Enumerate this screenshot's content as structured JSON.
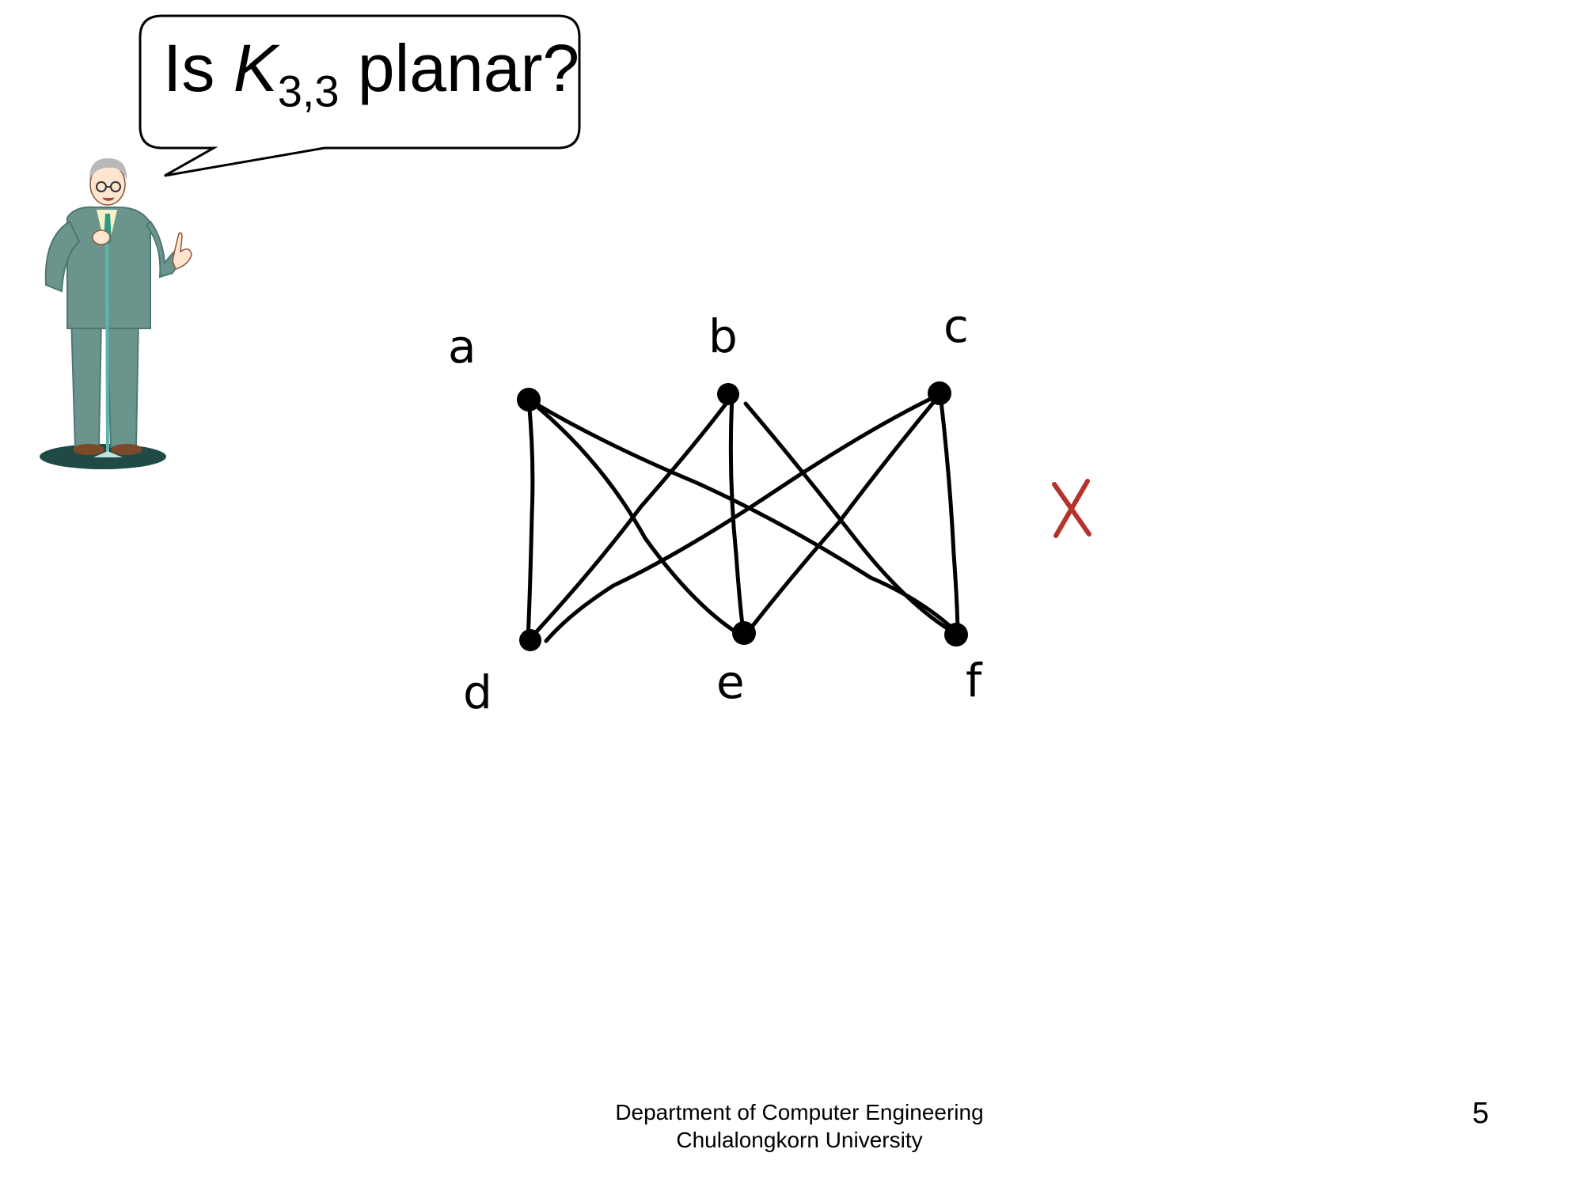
{
  "speech_bubble": {
    "prefix": "Is ",
    "symbol": "K",
    "subscript": "3,3",
    "suffix": " planar?"
  },
  "graph": {
    "vertex_labels": [
      "a",
      "b",
      "c",
      "d",
      "e",
      "f"
    ],
    "edges": [
      [
        "a",
        "d"
      ],
      [
        "a",
        "e"
      ],
      [
        "a",
        "f"
      ],
      [
        "b",
        "d"
      ],
      [
        "b",
        "e"
      ],
      [
        "b",
        "f"
      ],
      [
        "c",
        "d"
      ],
      [
        "c",
        "e"
      ],
      [
        "c",
        "f"
      ]
    ],
    "mark": "X",
    "mark_color": "#b5332a"
  },
  "footer": {
    "line1": "Department of Computer Engineering",
    "line2": "Chulalongkorn University"
  },
  "page_number": "5"
}
